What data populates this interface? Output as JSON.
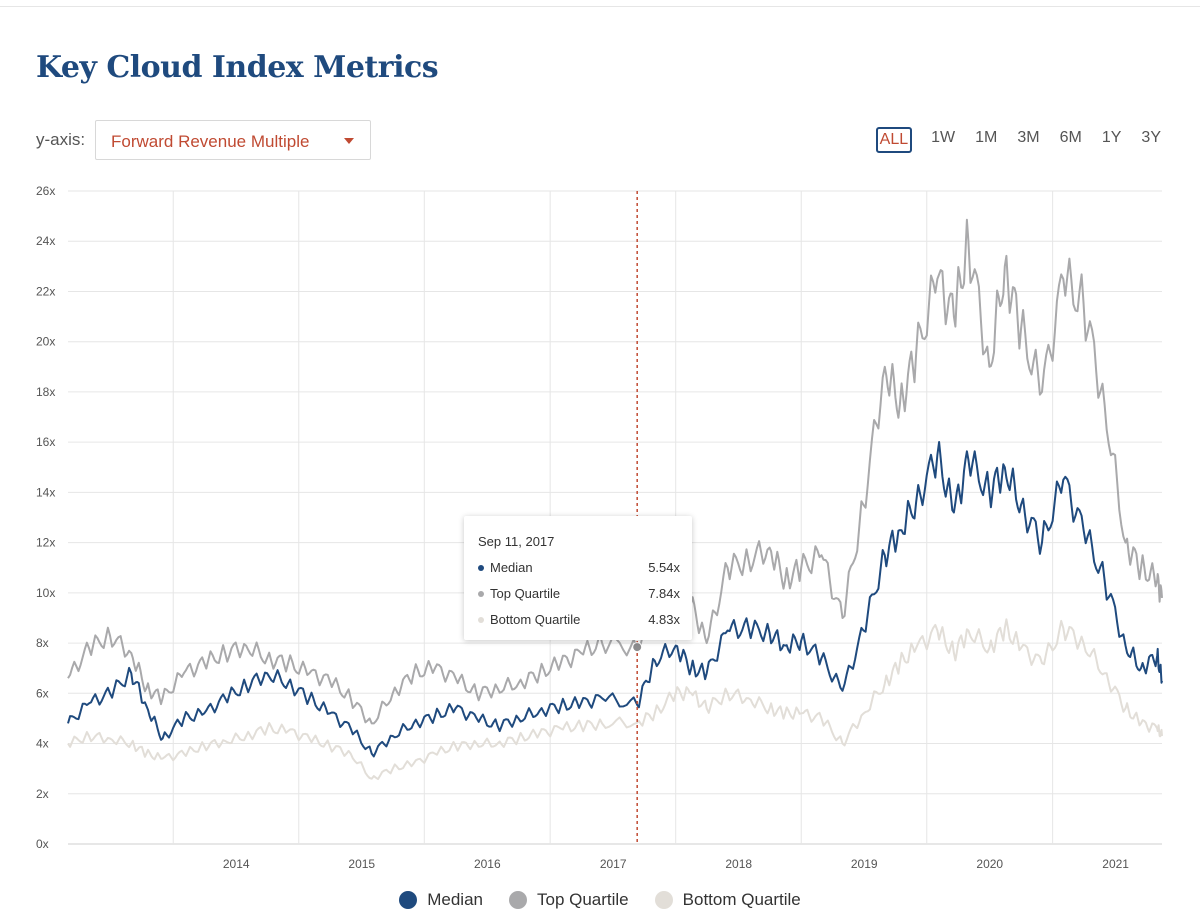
{
  "page": {
    "title": "Key Cloud Index Metrics"
  },
  "controls": {
    "yaxis_label": "y-axis:",
    "yaxis_selected": "Forward Revenue Multiple",
    "ranges": [
      "ALL",
      "1W",
      "1M",
      "3M",
      "6M",
      "1Y",
      "3Y"
    ],
    "active_range": "ALL"
  },
  "tooltip": {
    "date": "Sep 11, 2017",
    "rows": [
      {
        "name": "Median",
        "value": "5.54x",
        "color": "#1f4a7e"
      },
      {
        "name": "Top Quartile",
        "value": "7.84x",
        "color": "#a9a9ab"
      },
      {
        "name": "Bottom Quartile",
        "value": "4.83x",
        "color": "#e2ded8"
      }
    ]
  },
  "colors": {
    "median": "#1f4a7e",
    "top": "#a9a9ab",
    "bottom": "#e2ded8",
    "accent": "#c04a32",
    "crosshair": "#c04a32"
  },
  "chart_data": {
    "type": "line",
    "title": "Key Cloud Index Metrics",
    "ylabel": "Forward Revenue Multiple",
    "xlabel": "",
    "ylim": [
      0,
      26
    ],
    "xlim": [
      "2013-03-01",
      "2021-11-15"
    ],
    "y_ticks": [
      0,
      2,
      4,
      6,
      8,
      10,
      12,
      14,
      16,
      18,
      20,
      22,
      24,
      26
    ],
    "y_tick_suffix": "x",
    "x_tick_labels": [
      "2014",
      "2015",
      "2016",
      "2017",
      "2018",
      "2019",
      "2020",
      "2021"
    ],
    "grid": true,
    "legend_position": "bottom",
    "highlight_date": "2017-09-11",
    "x": [
      "2013-03-01",
      "2013-05-01",
      "2013-07-01",
      "2013-09-01",
      "2013-10-15",
      "2013-12-01",
      "2014-02-01",
      "2014-04-01",
      "2014-06-01",
      "2014-08-01",
      "2014-10-01",
      "2014-12-01",
      "2015-02-01",
      "2015-04-01",
      "2015-06-01",
      "2015-08-01",
      "2015-10-01",
      "2015-12-01",
      "2016-02-01",
      "2016-04-01",
      "2016-06-01",
      "2016-08-01",
      "2016-10-01",
      "2016-12-01",
      "2017-02-01",
      "2017-04-01",
      "2017-06-01",
      "2017-09-11",
      "2017-11-01",
      "2018-01-01",
      "2018-02-15",
      "2018-04-01",
      "2018-06-01",
      "2018-08-01",
      "2018-10-01",
      "2018-11-15",
      "2019-01-01",
      "2019-03-01",
      "2019-05-01",
      "2019-07-01",
      "2019-09-01",
      "2019-10-15",
      "2019-12-01",
      "2020-02-01",
      "2020-03-20",
      "2020-05-01",
      "2020-07-01",
      "2020-08-15",
      "2020-10-01",
      "2020-12-01",
      "2021-02-01",
      "2021-04-01",
      "2021-06-01",
      "2021-08-01",
      "2021-09-15",
      "2021-11-01",
      "2021-11-15"
    ],
    "series": [
      {
        "name": "Median",
        "values": [
          4.8,
          5.6,
          6.0,
          6.8,
          5.5,
          4.2,
          5.0,
          5.2,
          5.8,
          6.3,
          6.8,
          6.4,
          5.8,
          5.2,
          4.6,
          3.6,
          4.3,
          4.8,
          5.1,
          5.4,
          5.0,
          4.7,
          5.0,
          5.3,
          5.5,
          5.6,
          5.8,
          5.54,
          7.3,
          7.9,
          7.0,
          6.8,
          8.5,
          8.6,
          8.4,
          7.9,
          8.1,
          7.4,
          6.1,
          8.5,
          11.5,
          12.5,
          13.6,
          15.5,
          13.2,
          15.3,
          14.0,
          15.0,
          13.5,
          12.0,
          14.5,
          12.5,
          10.5,
          7.9,
          7.0,
          7.5,
          6.5
        ]
      },
      {
        "name": "Top Quartile",
        "values": [
          6.6,
          7.8,
          8.3,
          7.6,
          6.2,
          5.8,
          6.8,
          7.2,
          7.6,
          7.9,
          7.4,
          7.2,
          6.8,
          6.5,
          5.8,
          4.8,
          6.0,
          6.8,
          7.0,
          6.6,
          6.0,
          6.2,
          6.4,
          6.8,
          7.2,
          7.6,
          8.0,
          7.84,
          9.5,
          10.3,
          9.6,
          8.0,
          11.0,
          11.3,
          11.8,
          10.5,
          11.0,
          11.5,
          9.0,
          13.5,
          19.0,
          17.5,
          19.5,
          22.5,
          21.0,
          24.0,
          19.0,
          23.0,
          20.5,
          18.0,
          22.5,
          21.5,
          17.5,
          12.0,
          11.0,
          10.5,
          9.8
        ]
      },
      {
        "name": "Bottom Quartile",
        "values": [
          4.0,
          4.3,
          4.2,
          4.0,
          3.6,
          3.4,
          3.6,
          3.9,
          4.1,
          4.3,
          4.6,
          4.5,
          4.2,
          3.9,
          3.6,
          2.6,
          3.0,
          3.2,
          3.6,
          3.9,
          4.0,
          4.0,
          4.2,
          4.4,
          4.6,
          4.7,
          4.8,
          4.83,
          5.2,
          6.0,
          6.0,
          5.4,
          6.0,
          5.8,
          5.4,
          5.2,
          5.2,
          5.0,
          4.0,
          5.2,
          6.4,
          7.2,
          7.8,
          8.5,
          7.6,
          8.5,
          7.8,
          8.6,
          7.8,
          7.2,
          8.6,
          8.0,
          6.8,
          5.4,
          4.8,
          4.6,
          4.3
        ]
      }
    ]
  },
  "legend": [
    {
      "label": "Median",
      "color": "#1f4a7e"
    },
    {
      "label": "Top Quartile",
      "color": "#a9a9ab"
    },
    {
      "label": "Bottom Quartile",
      "color": "#e2ded8"
    }
  ]
}
